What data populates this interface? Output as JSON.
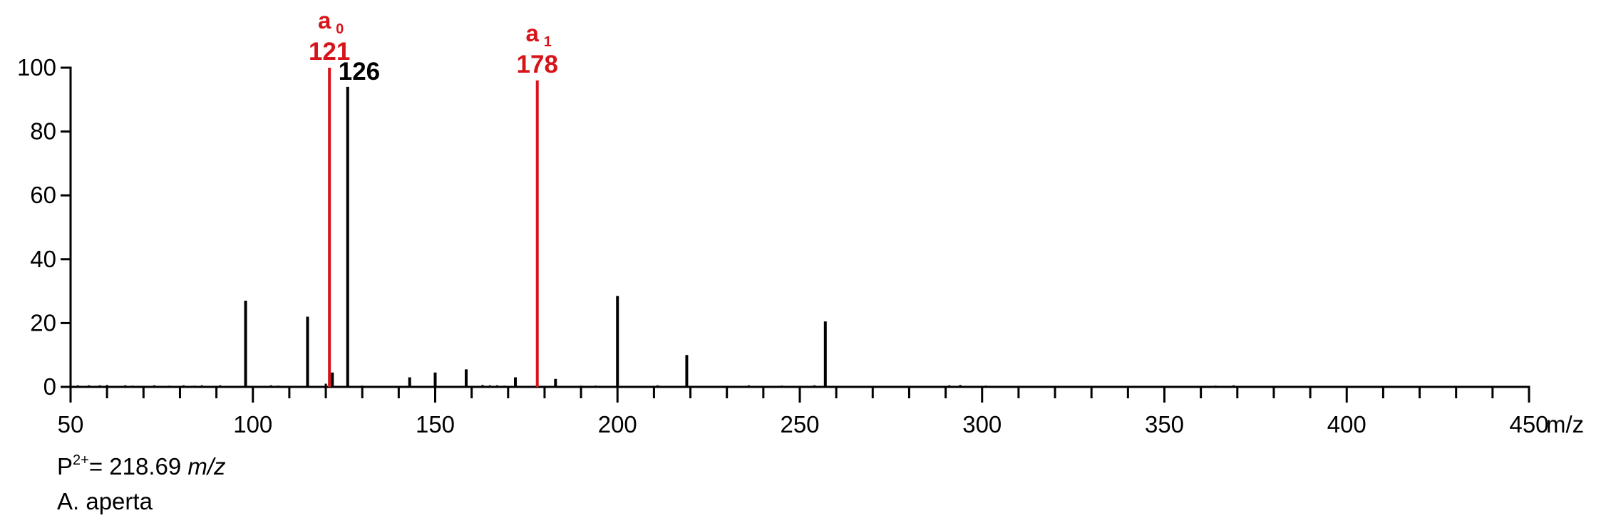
{
  "chart_data": {
    "type": "bar",
    "xlabel": "m/z",
    "ylabel": "",
    "xlim": [
      50,
      450
    ],
    "ylim": [
      0,
      100
    ],
    "x_ticks_labeled": [
      50,
      100,
      150,
      200,
      250,
      300,
      350,
      400,
      450
    ],
    "x_minor_tick_step": 10,
    "y_ticks": [
      0,
      20,
      40,
      60,
      80,
      100
    ],
    "colors": {
      "default": "#000000",
      "annotated": "#d7141a"
    },
    "peaks": [
      {
        "mz": 98,
        "intensity": 27
      },
      {
        "mz": 115,
        "intensity": 22
      },
      {
        "mz": 121,
        "intensity": 100,
        "color": "annotated",
        "ion": "a",
        "ion_sub": "0",
        "label": "121"
      },
      {
        "mz": 121.8,
        "intensity": 4.5
      },
      {
        "mz": 126,
        "intensity": 94,
        "label": "126"
      },
      {
        "mz": 143,
        "intensity": 3
      },
      {
        "mz": 150,
        "intensity": 4.5
      },
      {
        "mz": 158.5,
        "intensity": 5.5
      },
      {
        "mz": 172,
        "intensity": 3
      },
      {
        "mz": 178,
        "intensity": 96,
        "color": "annotated",
        "ion": "a",
        "ion_sub": "1",
        "label": "178"
      },
      {
        "mz": 183,
        "intensity": 2.5
      },
      {
        "mz": 200,
        "intensity": 28.5
      },
      {
        "mz": 219,
        "intensity": 10
      },
      {
        "mz": 257,
        "intensity": 20.5
      },
      {
        "mz": 120,
        "intensity": 1
      },
      {
        "mz": 52,
        "intensity": 0.5
      },
      {
        "mz": 55,
        "intensity": 0.5
      },
      {
        "mz": 58,
        "intensity": 0.5
      },
      {
        "mz": 60,
        "intensity": 0.6
      },
      {
        "mz": 65,
        "intensity": 0.5
      },
      {
        "mz": 67,
        "intensity": 0.4
      },
      {
        "mz": 73,
        "intensity": 0.5
      },
      {
        "mz": 77,
        "intensity": 0.4
      },
      {
        "mz": 81,
        "intensity": 0.5
      },
      {
        "mz": 84,
        "intensity": 0.4
      },
      {
        "mz": 86,
        "intensity": 0.5
      },
      {
        "mz": 91,
        "intensity": 0.5
      },
      {
        "mz": 105,
        "intensity": 0.5
      },
      {
        "mz": 107,
        "intensity": 0.4
      },
      {
        "mz": 130,
        "intensity": 0.4
      },
      {
        "mz": 163,
        "intensity": 0.6
      },
      {
        "mz": 165,
        "intensity": 0.5
      },
      {
        "mz": 167,
        "intensity": 0.5
      },
      {
        "mz": 169,
        "intensity": 0.4
      },
      {
        "mz": 190,
        "intensity": 0.4
      },
      {
        "mz": 194,
        "intensity": 0.4
      },
      {
        "mz": 211,
        "intensity": 0.5
      },
      {
        "mz": 236,
        "intensity": 0.5
      },
      {
        "mz": 245,
        "intensity": 0.4
      },
      {
        "mz": 254,
        "intensity": 0.5
      },
      {
        "mz": 291,
        "intensity": 0.5
      },
      {
        "mz": 294,
        "intensity": 0.6
      },
      {
        "mz": 301,
        "intensity": 0.4
      },
      {
        "mz": 364,
        "intensity": 0.4
      },
      {
        "mz": 369,
        "intensity": 0.5
      }
    ]
  },
  "precursor": {
    "prefix": "P",
    "charge": "2+",
    "value": "= 218.69",
    "unit": "m/z"
  },
  "species": "A. aperta"
}
